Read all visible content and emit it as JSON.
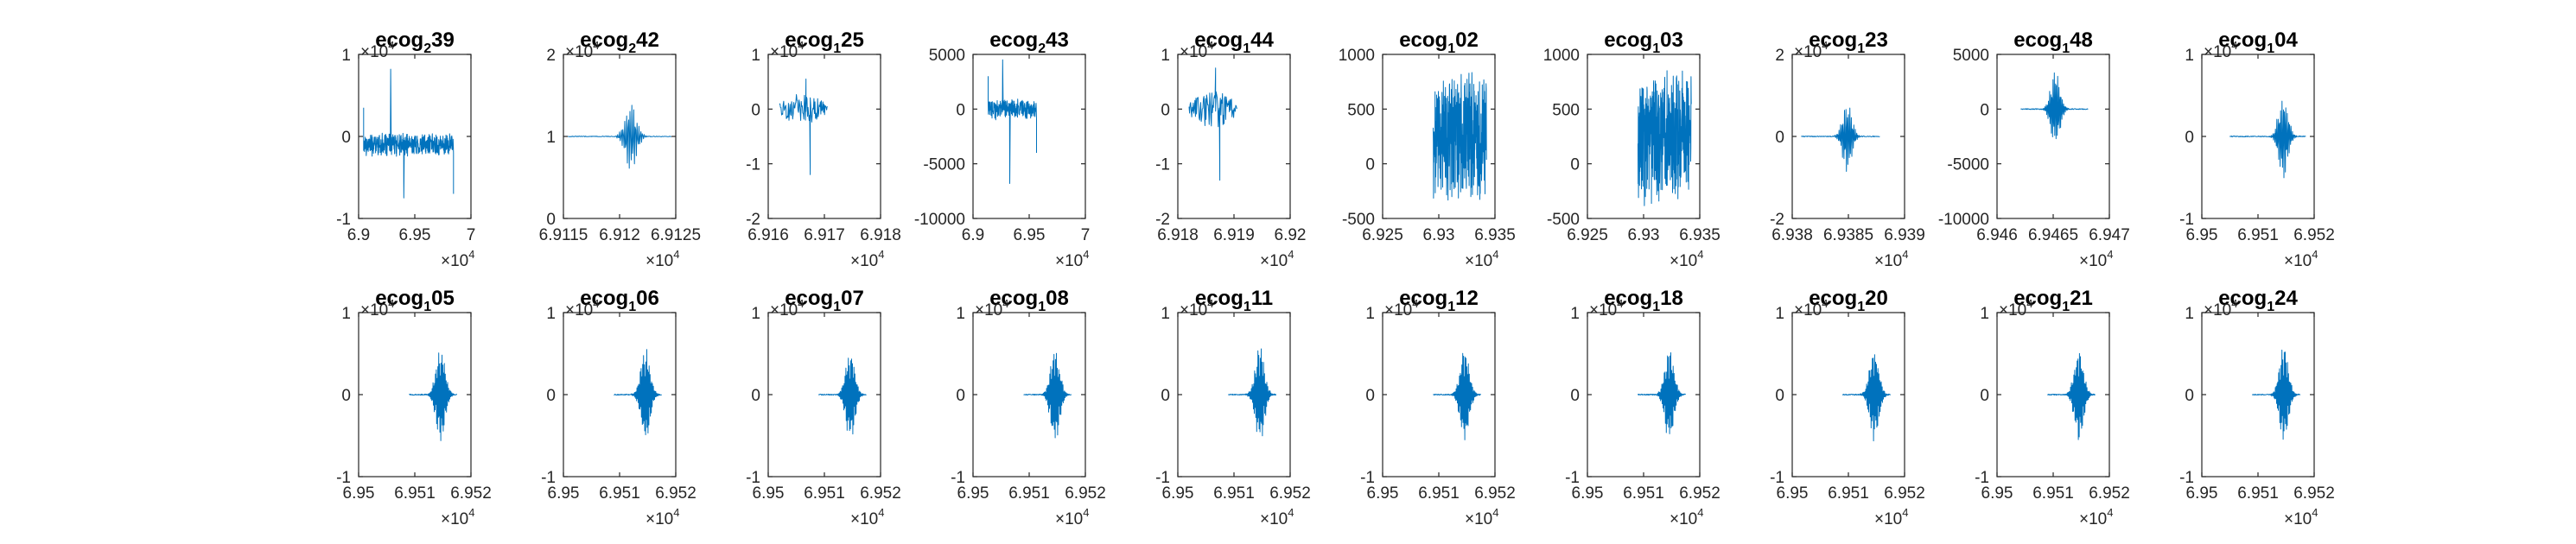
{
  "colors": {
    "series": "#0072BD",
    "axes": "#262626",
    "background": "#ffffff"
  },
  "chart_data": [
    {
      "type": "line",
      "title": {
        "base": "ecog",
        "sub": "2",
        "suffix": "39"
      },
      "xlim": [
        6.9,
        7.0
      ],
      "ylim": [
        -1,
        1
      ],
      "x_ticks": [
        "6.9",
        "6.95",
        "7"
      ],
      "y_ticks": [
        "1",
        "0",
        "-1"
      ],
      "x_exponent": "4",
      "y_exponent": "4",
      "grid": false,
      "signal": {
        "shape": "dense",
        "x_start": 6.9045,
        "x_end": 6.9845,
        "y_center": -0.1,
        "amplitude": 0.15,
        "spikes": [
          0.82,
          -0.75
        ]
      }
    },
    {
      "type": "line",
      "title": {
        "base": "ecog",
        "sub": "2",
        "suffix": "42"
      },
      "xlim": [
        6.9115,
        6.9125
      ],
      "ylim": [
        0,
        2
      ],
      "x_ticks": [
        "6.9115",
        "6.912",
        "6.9125"
      ],
      "y_ticks": [
        "2",
        "1",
        "0"
      ],
      "x_exponent": "4",
      "y_exponent": "4",
      "grid": false,
      "signal": {
        "shape": "burst",
        "x_start": 6.91154,
        "x_end": 6.91246,
        "y_center": 1.0,
        "amplitude": 0.45,
        "burst_center": 6.9121,
        "burst_width": 5e-05
      }
    },
    {
      "type": "line",
      "title": {
        "base": "ecog",
        "sub": "1",
        "suffix": "25"
      },
      "xlim": [
        6.916,
        6.918
      ],
      "ylim": [
        -2,
        1
      ],
      "x_ticks": [
        "6.916",
        "6.917",
        "6.918"
      ],
      "y_ticks": [
        "1",
        "0",
        "-1",
        "-2"
      ],
      "x_exponent": "4",
      "y_exponent": "4",
      "grid": false,
      "signal": {
        "shape": "choppy",
        "x_start": 6.9162,
        "x_end": 6.91705,
        "y_center": 0.0,
        "amplitude": 0.3,
        "spikes": [
          0.55,
          -1.2
        ]
      }
    },
    {
      "type": "line",
      "title": {
        "base": "ecog",
        "sub": "2",
        "suffix": "43"
      },
      "xlim": [
        6.9,
        7.0
      ],
      "ylim": [
        -10000,
        5000
      ],
      "x_ticks": [
        "6.9",
        "6.95",
        "7"
      ],
      "y_ticks": [
        "5000",
        "0",
        "-5000",
        "-10000"
      ],
      "x_exponent": "4",
      "y_exponent": "",
      "grid": false,
      "signal": {
        "shape": "dense",
        "x_start": 6.9135,
        "x_end": 6.9565,
        "y_center": 0,
        "amplitude": 1000,
        "spikes": [
          4500,
          -6800
        ]
      }
    },
    {
      "type": "line",
      "title": {
        "base": "ecog",
        "sub": "1",
        "suffix": "44"
      },
      "xlim": [
        6.918,
        6.92
      ],
      "ylim": [
        -2,
        1
      ],
      "x_ticks": [
        "6.918",
        "6.919",
        "6.92"
      ],
      "y_ticks": [
        "1",
        "0",
        "-1",
        "-2"
      ],
      "x_exponent": "4",
      "y_exponent": "4",
      "grid": false,
      "signal": {
        "shape": "choppy",
        "x_start": 6.9182,
        "x_end": 6.91905,
        "y_center": 0.0,
        "amplitude": 0.35,
        "spikes": [
          0.75,
          -1.3
        ]
      }
    },
    {
      "type": "line",
      "title": {
        "base": "ecog",
        "sub": "1",
        "suffix": "02"
      },
      "xlim": [
        6.925,
        6.935
      ],
      "ylim": [
        -500,
        1000
      ],
      "x_ticks": [
        "6.925",
        "6.93",
        "6.935"
      ],
      "y_ticks": [
        "1000",
        "500",
        "0",
        "-500"
      ],
      "x_exponent": "4",
      "y_exponent": "",
      "grid": false,
      "signal": {
        "shape": "block",
        "x_start": 6.9295,
        "x_end": 6.93425,
        "y_center": 250,
        "amplitude": 650,
        "spikes": []
      }
    },
    {
      "type": "line",
      "title": {
        "base": "ecog",
        "sub": "1",
        "suffix": "03"
      },
      "xlim": [
        6.925,
        6.935
      ],
      "ylim": [
        -500,
        1000
      ],
      "x_ticks": [
        "6.925",
        "6.93",
        "6.935"
      ],
      "y_ticks": [
        "1000",
        "500",
        "0",
        "-500"
      ],
      "x_exponent": "4",
      "y_exponent": "",
      "grid": false,
      "signal": {
        "shape": "block",
        "x_start": 6.9295,
        "x_end": 6.93425,
        "y_center": 250,
        "amplitude": 650,
        "spikes": []
      }
    },
    {
      "type": "line",
      "title": {
        "base": "ecog",
        "sub": "1",
        "suffix": "23"
      },
      "xlim": [
        6.938,
        6.939
      ],
      "ylim": [
        -2,
        2
      ],
      "x_ticks": [
        "6.938",
        "6.9385",
        "6.939"
      ],
      "y_ticks": [
        "2",
        "0",
        "-2"
      ],
      "x_exponent": "4",
      "y_exponent": "4",
      "grid": false,
      "signal": {
        "shape": "burst",
        "x_start": 6.93808,
        "x_end": 6.93878,
        "y_center": 0,
        "amplitude": 1.0,
        "burst_center": 6.93849,
        "burst_width": 4e-05
      }
    },
    {
      "type": "line",
      "title": {
        "base": "ecog",
        "sub": "1",
        "suffix": "48"
      },
      "xlim": [
        6.946,
        6.947
      ],
      "ylim": [
        -10000,
        5000
      ],
      "x_ticks": [
        "6.946",
        "6.9465",
        "6.947"
      ],
      "y_ticks": [
        "5000",
        "0",
        "-5000",
        "-10000"
      ],
      "x_exponent": "4",
      "y_exponent": "",
      "grid": false,
      "signal": {
        "shape": "burst",
        "x_start": 6.94621,
        "x_end": 6.94681,
        "y_center": 0,
        "amplitude": 3800,
        "burst_center": 6.94652,
        "burst_width": 4e-05
      }
    },
    {
      "type": "line",
      "title": {
        "base": "ecog",
        "sub": "1",
        "suffix": "04"
      },
      "xlim": [
        6.95,
        6.952
      ],
      "ylim": [
        -1,
        1
      ],
      "x_ticks": [
        "6.95",
        "6.951",
        "6.952"
      ],
      "y_ticks": [
        "1",
        "0",
        "-1"
      ],
      "x_exponent": "4",
      "y_exponent": "4",
      "grid": false,
      "signal": {
        "shape": "burst",
        "x_start": 6.9505,
        "x_end": 6.95185,
        "y_center": 0,
        "amplitude": 0.6,
        "burst_center": 6.95145,
        "burst_width": 8e-05
      }
    },
    {
      "type": "line",
      "title": {
        "base": "ecog",
        "sub": "1",
        "suffix": "05"
      },
      "xlim": [
        6.95,
        6.952
      ],
      "ylim": [
        -1,
        1
      ],
      "x_ticks": [
        "6.95",
        "6.951",
        "6.952"
      ],
      "y_ticks": [
        "1",
        "0",
        "-1"
      ],
      "x_exponent": "4",
      "y_exponent": "4",
      "grid": false,
      "signal": {
        "shape": "burst",
        "x_start": 6.9509,
        "x_end": 6.95175,
        "y_center": 0,
        "amplitude": 0.6,
        "burst_center": 6.95146,
        "burst_width": 8e-05
      }
    },
    {
      "type": "line",
      "title": {
        "base": "ecog",
        "sub": "1",
        "suffix": "06"
      },
      "xlim": [
        6.95,
        6.952
      ],
      "ylim": [
        -1,
        1
      ],
      "x_ticks": [
        "6.95",
        "6.951",
        "6.952"
      ],
      "y_ticks": [
        "1",
        "0",
        "-1"
      ],
      "x_exponent": "4",
      "y_exponent": "4",
      "grid": false,
      "signal": {
        "shape": "burst",
        "x_start": 6.9509,
        "x_end": 6.95175,
        "y_center": 0,
        "amplitude": 0.6,
        "burst_center": 6.95146,
        "burst_width": 8e-05
      }
    },
    {
      "type": "line",
      "title": {
        "base": "ecog",
        "sub": "1",
        "suffix": "07"
      },
      "xlim": [
        6.95,
        6.952
      ],
      "ylim": [
        -1,
        1
      ],
      "x_ticks": [
        "6.95",
        "6.951",
        "6.952"
      ],
      "y_ticks": [
        "1",
        "0",
        "-1"
      ],
      "x_exponent": "4",
      "y_exponent": "4",
      "grid": false,
      "signal": {
        "shape": "burst",
        "x_start": 6.9509,
        "x_end": 6.95175,
        "y_center": 0,
        "amplitude": 0.6,
        "burst_center": 6.95146,
        "burst_width": 8e-05
      }
    },
    {
      "type": "line",
      "title": {
        "base": "ecog",
        "sub": "1",
        "suffix": "08"
      },
      "xlim": [
        6.95,
        6.952
      ],
      "ylim": [
        -1,
        1
      ],
      "x_ticks": [
        "6.95",
        "6.951",
        "6.952"
      ],
      "y_ticks": [
        "1",
        "0",
        "-1"
      ],
      "x_exponent": "4",
      "y_exponent": "4",
      "grid": false,
      "signal": {
        "shape": "burst",
        "x_start": 6.9509,
        "x_end": 6.95175,
        "y_center": 0,
        "amplitude": 0.6,
        "burst_center": 6.95146,
        "burst_width": 8e-05
      }
    },
    {
      "type": "line",
      "title": {
        "base": "ecog",
        "sub": "1",
        "suffix": "11"
      },
      "xlim": [
        6.95,
        6.952
      ],
      "ylim": [
        -1,
        1
      ],
      "x_ticks": [
        "6.95",
        "6.951",
        "6.952"
      ],
      "y_ticks": [
        "1",
        "0",
        "-1"
      ],
      "x_exponent": "4",
      "y_exponent": "4",
      "grid": false,
      "signal": {
        "shape": "burst",
        "x_start": 6.9509,
        "x_end": 6.95175,
        "y_center": 0,
        "amplitude": 0.6,
        "burst_center": 6.95146,
        "burst_width": 8e-05
      }
    },
    {
      "type": "line",
      "title": {
        "base": "ecog",
        "sub": "1",
        "suffix": "12"
      },
      "xlim": [
        6.95,
        6.952
      ],
      "ylim": [
        -1,
        1
      ],
      "x_ticks": [
        "6.95",
        "6.951",
        "6.952"
      ],
      "y_ticks": [
        "1",
        "0",
        "-1"
      ],
      "x_exponent": "4",
      "y_exponent": "4",
      "grid": false,
      "signal": {
        "shape": "burst",
        "x_start": 6.9509,
        "x_end": 6.95175,
        "y_center": 0,
        "amplitude": 0.6,
        "burst_center": 6.95146,
        "burst_width": 8e-05
      }
    },
    {
      "type": "line",
      "title": {
        "base": "ecog",
        "sub": "1",
        "suffix": "18"
      },
      "xlim": [
        6.95,
        6.952
      ],
      "ylim": [
        -1,
        1
      ],
      "x_ticks": [
        "6.95",
        "6.951",
        "6.952"
      ],
      "y_ticks": [
        "1",
        "0",
        "-1"
      ],
      "x_exponent": "4",
      "y_exponent": "4",
      "grid": false,
      "signal": {
        "shape": "burst",
        "x_start": 6.9509,
        "x_end": 6.95175,
        "y_center": 0,
        "amplitude": 0.6,
        "burst_center": 6.95146,
        "burst_width": 8e-05
      }
    },
    {
      "type": "line",
      "title": {
        "base": "ecog",
        "sub": "1",
        "suffix": "20"
      },
      "xlim": [
        6.95,
        6.952
      ],
      "ylim": [
        -1,
        1
      ],
      "x_ticks": [
        "6.95",
        "6.951",
        "6.952"
      ],
      "y_ticks": [
        "1",
        "0",
        "-1"
      ],
      "x_exponent": "4",
      "y_exponent": "4",
      "grid": false,
      "signal": {
        "shape": "burst",
        "x_start": 6.9509,
        "x_end": 6.95175,
        "y_center": 0,
        "amplitude": 0.6,
        "burst_center": 6.95146,
        "burst_width": 8e-05
      }
    },
    {
      "type": "line",
      "title": {
        "base": "ecog",
        "sub": "1",
        "suffix": "21"
      },
      "xlim": [
        6.95,
        6.952
      ],
      "ylim": [
        -1,
        1
      ],
      "x_ticks": [
        "6.95",
        "6.951",
        "6.952"
      ],
      "y_ticks": [
        "1",
        "0",
        "-1"
      ],
      "x_exponent": "4",
      "y_exponent": "4",
      "grid": false,
      "signal": {
        "shape": "burst",
        "x_start": 6.9509,
        "x_end": 6.95175,
        "y_center": 0,
        "amplitude": 0.6,
        "burst_center": 6.95146,
        "burst_width": 8e-05
      }
    },
    {
      "type": "line",
      "title": {
        "base": "ecog",
        "sub": "1",
        "suffix": "24"
      },
      "xlim": [
        6.95,
        6.952
      ],
      "ylim": [
        -1,
        1
      ],
      "x_ticks": [
        "6.95",
        "6.951",
        "6.952"
      ],
      "y_ticks": [
        "1",
        "0",
        "-1"
      ],
      "x_exponent": "4",
      "y_exponent": "4",
      "grid": false,
      "signal": {
        "shape": "burst",
        "x_start": 6.9509,
        "x_end": 6.95175,
        "y_center": 0,
        "amplitude": 0.6,
        "burst_center": 6.95146,
        "burst_width": 8e-05
      }
    }
  ]
}
